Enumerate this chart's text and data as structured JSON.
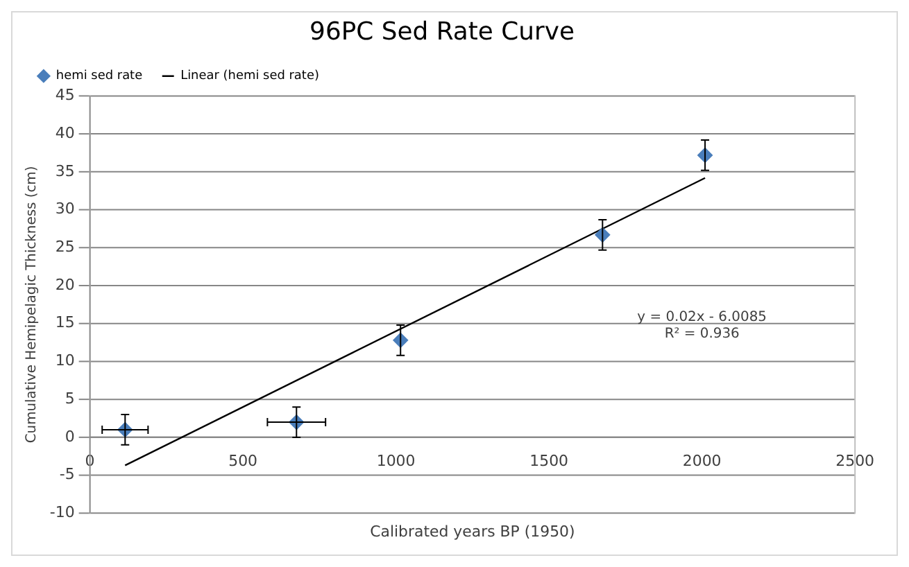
{
  "chart_data": {
    "type": "scatter",
    "title": "96PC Sed Rate Curve",
    "xlabel": "Calibrated years BP (1950)",
    "ylabel": "Cumulative Hemipelagic Thickness (cm)",
    "series": [
      {
        "name": "hemi sed rate",
        "type": "scatter",
        "marker": "diamond",
        "color": "#4a7ebb",
        "x": [
          115,
          675,
          1015,
          1675,
          2010
        ],
        "values": [
          1,
          2,
          12.8,
          26.7,
          37.2
        ],
        "errors": [
          2,
          2,
          2,
          2,
          2
        ],
        "xerrors": [
          75,
          95,
          null,
          null,
          null
        ]
      },
      {
        "name": "Linear (hemi sed rate)",
        "type": "line",
        "marker": "none",
        "color": "#000000",
        "x": [
          115,
          2010
        ],
        "values": [
          -3.7,
          34.2
        ]
      }
    ],
    "annotations": [
      "y = 0.02x - 6.0085",
      "R² = 0.936"
    ],
    "xlim": [
      0,
      2500
    ],
    "xticks": [
      0,
      500,
      1000,
      1500,
      2000,
      2500
    ],
    "ylim": [
      -10,
      45
    ],
    "yticks": [
      -10,
      -5,
      0,
      5,
      10,
      15,
      20,
      25,
      30,
      35,
      40,
      45
    ],
    "grid": "y",
    "legend": "top left"
  }
}
